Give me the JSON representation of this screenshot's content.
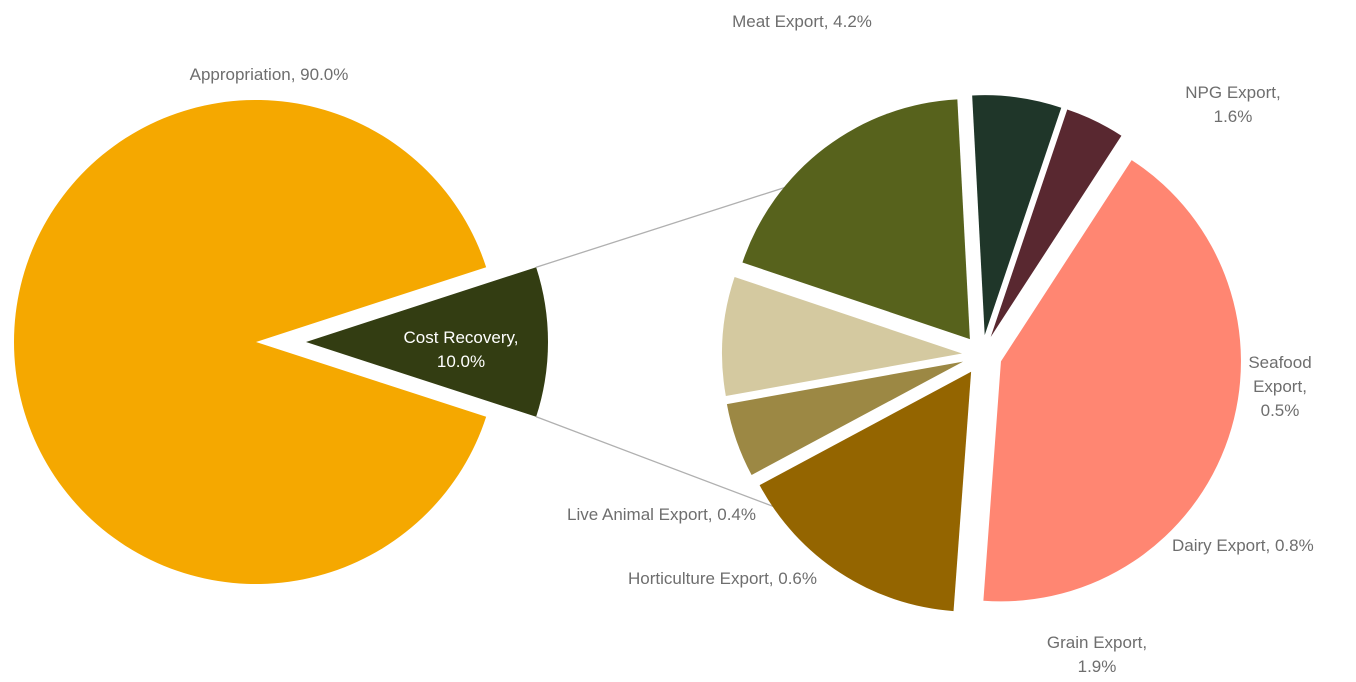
{
  "chart_data": {
    "type": "pie-of-pie",
    "title": "",
    "primary": {
      "slices": [
        {
          "label": "Appropriation",
          "value": 90.0,
          "value_text": "90.0%",
          "color": "#F5A800"
        },
        {
          "label": "Cost Recovery",
          "value": 10.0,
          "value_text": "10.0%",
          "color": "#333D12"
        }
      ]
    },
    "secondary": {
      "slices": [
        {
          "label": "Meat Export",
          "value": 4.2,
          "value_text": "4.2%",
          "color": "#FF8672"
        },
        {
          "label": "NPG Export",
          "value": 1.6,
          "value_text": "1.6%",
          "color": "#946500"
        },
        {
          "label": "Seafood Export",
          "value": 0.5,
          "value_text": "0.5%",
          "color": "#9C8844"
        },
        {
          "label": "Dairy Export",
          "value": 0.8,
          "value_text": "0.8%",
          "color": "#D4C9A0"
        },
        {
          "label": "Grain Export",
          "value": 1.9,
          "value_text": "1.9%",
          "color": "#57621C"
        },
        {
          "label": "Horticulture Export",
          "value": 0.6,
          "value_text": "0.6%",
          "color": "#1F3629"
        },
        {
          "label": "Live Animal Export",
          "value": 0.4,
          "value_text": "0.4%",
          "color": "#592830"
        }
      ]
    },
    "connector_color": "#b0b0b0",
    "label_color": "#6e6e6e"
  }
}
